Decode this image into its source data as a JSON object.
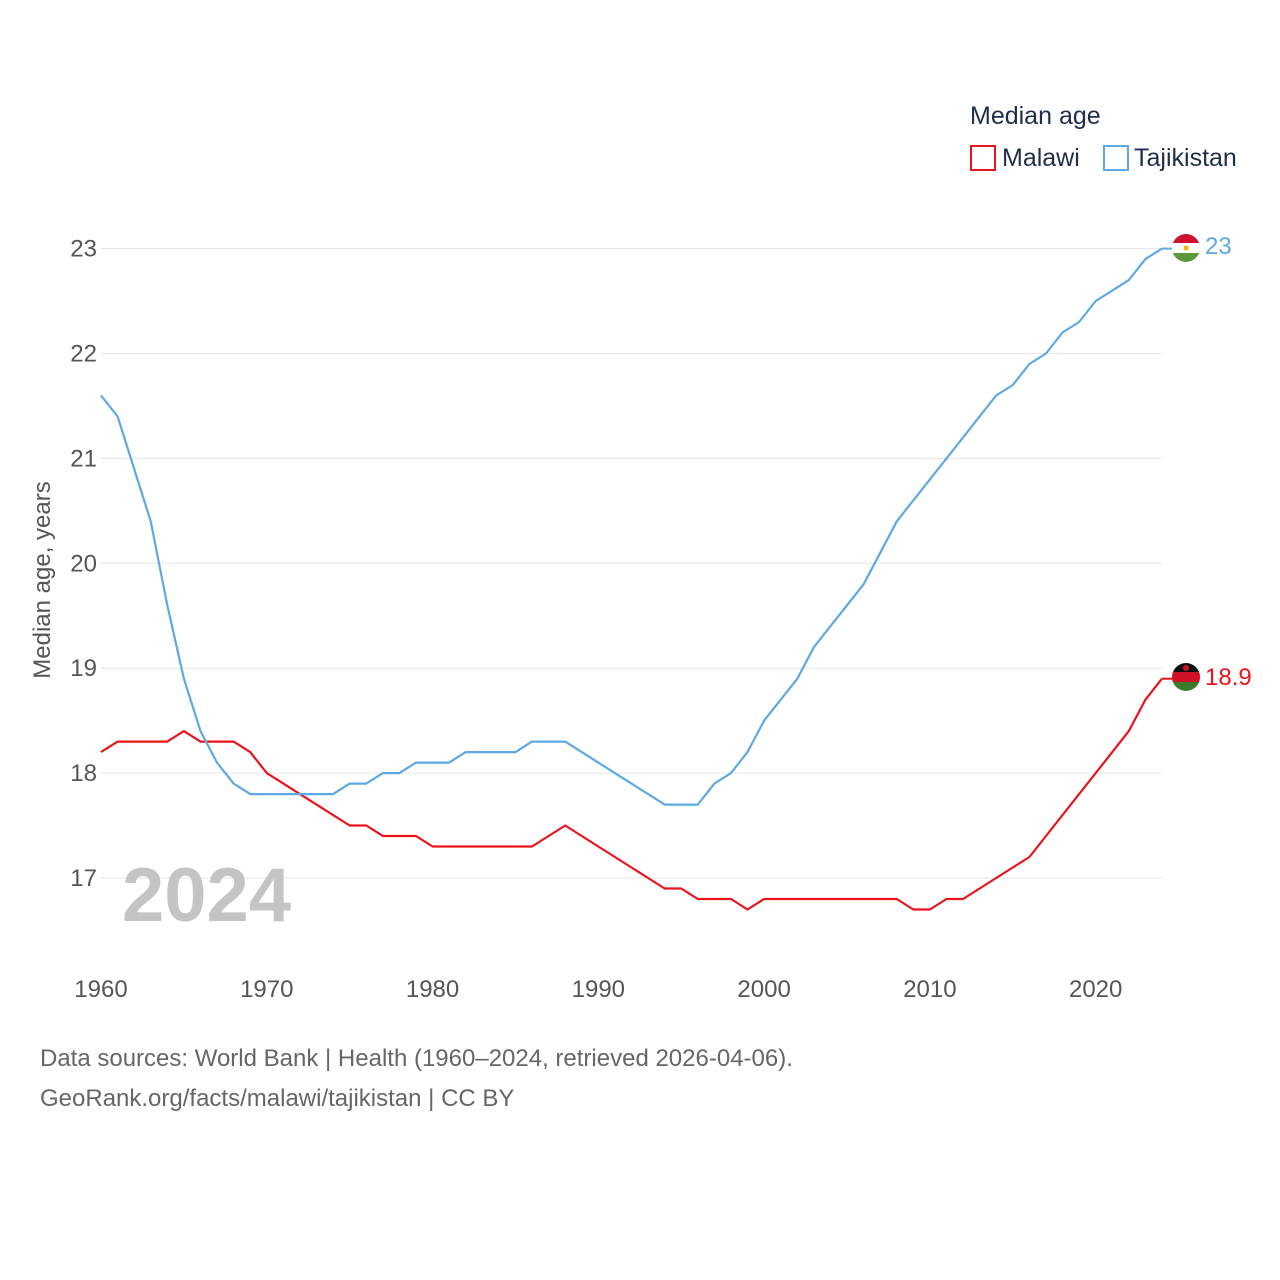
{
  "chart_data": {
    "type": "line",
    "title": "",
    "legend_title": "Median age",
    "legend_position": "top-right",
    "xlabel": "",
    "ylabel": "Median age, years",
    "xlim": [
      1960,
      2024
    ],
    "ylim": [
      16.3,
      23.5
    ],
    "x_ticks": [
      1960,
      1970,
      1980,
      1990,
      2000,
      2010,
      2020
    ],
    "y_ticks": [
      17,
      18,
      19,
      20,
      21,
      22,
      23
    ],
    "current_year_label": "2024",
    "x": [
      1960,
      1961,
      1962,
      1963,
      1964,
      1965,
      1966,
      1967,
      1968,
      1969,
      1970,
      1971,
      1972,
      1973,
      1974,
      1975,
      1976,
      1977,
      1978,
      1979,
      1980,
      1981,
      1982,
      1983,
      1984,
      1985,
      1986,
      1987,
      1988,
      1989,
      1990,
      1991,
      1992,
      1993,
      1994,
      1995,
      1996,
      1997,
      1998,
      1999,
      2000,
      2001,
      2002,
      2003,
      2004,
      2005,
      2006,
      2007,
      2008,
      2009,
      2010,
      2011,
      2012,
      2013,
      2014,
      2015,
      2016,
      2017,
      2018,
      2019,
      2020,
      2021,
      2022,
      2023,
      2024
    ],
    "series": [
      {
        "name": "Malawi",
        "color": "#e8141c",
        "end_label": "18.9",
        "values": [
          18.2,
          18.3,
          18.3,
          18.3,
          18.3,
          18.4,
          18.3,
          18.3,
          18.3,
          18.2,
          18.0,
          17.9,
          17.8,
          17.7,
          17.6,
          17.5,
          17.5,
          17.4,
          17.4,
          17.4,
          17.3,
          17.3,
          17.3,
          17.3,
          17.3,
          17.3,
          17.3,
          17.4,
          17.5,
          17.4,
          17.3,
          17.2,
          17.1,
          17.0,
          16.9,
          16.9,
          16.8,
          16.8,
          16.8,
          16.7,
          16.8,
          16.8,
          16.8,
          16.8,
          16.8,
          16.8,
          16.8,
          16.8,
          16.8,
          16.7,
          16.7,
          16.8,
          16.8,
          16.9,
          17.0,
          17.1,
          17.2,
          17.4,
          17.6,
          17.8,
          18.0,
          18.2,
          18.4,
          18.7,
          18.9
        ]
      },
      {
        "name": "Tajikistan",
        "color": "#5ea8e4",
        "end_label": "23",
        "values": [
          21.6,
          21.4,
          20.9,
          20.4,
          19.6,
          18.9,
          18.4,
          18.1,
          17.9,
          17.8,
          17.8,
          17.8,
          17.8,
          17.8,
          17.8,
          17.9,
          17.9,
          18.0,
          18.0,
          18.1,
          18.1,
          18.1,
          18.2,
          18.2,
          18.2,
          18.2,
          18.3,
          18.3,
          18.3,
          18.2,
          18.1,
          18.0,
          17.9,
          17.8,
          17.7,
          17.7,
          17.7,
          17.9,
          18.0,
          18.2,
          18.5,
          18.7,
          18.9,
          19.2,
          19.4,
          19.6,
          19.8,
          20.1,
          20.4,
          20.6,
          20.8,
          21.0,
          21.2,
          21.4,
          21.6,
          21.7,
          21.9,
          22.0,
          22.2,
          22.3,
          22.5,
          22.6,
          22.7,
          22.9,
          23.0
        ]
      }
    ]
  },
  "footer": {
    "sources": "Data sources: World Bank | Health (1960–2024, retrieved 2026-04-06).",
    "credit": "GeoRank.org/facts/malawi/tajikistan | CC BY"
  }
}
